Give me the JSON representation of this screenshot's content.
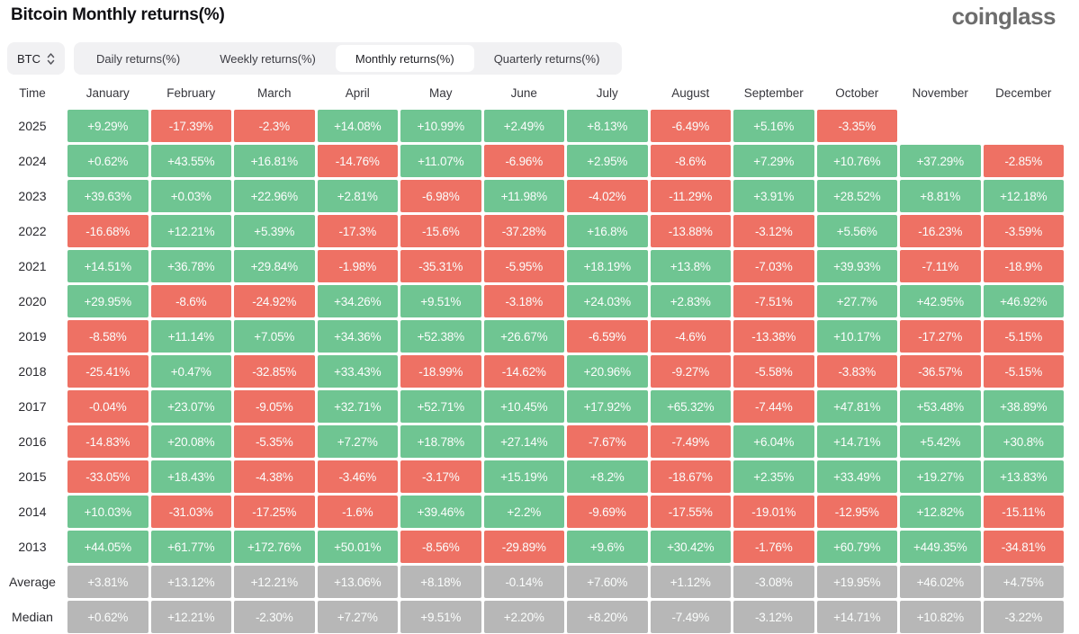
{
  "page": {
    "title": "Bitcoin Monthly returns(%)",
    "logo_text": "coinglass"
  },
  "controls": {
    "coin_selector": {
      "value": "BTC"
    },
    "tabs": [
      {
        "label": "Daily returns(%)",
        "active": false
      },
      {
        "label": "Weekly returns(%)",
        "active": false
      },
      {
        "label": "Monthly returns(%)",
        "active": true
      },
      {
        "label": "Quarterly returns(%)",
        "active": false
      }
    ]
  },
  "colors": {
    "positive": "#6fc592",
    "negative": "#ee7164",
    "summary": "#b7b7b7",
    "chip_background": "#f1f1f3"
  },
  "table": {
    "time_header": "Time",
    "months": [
      "January",
      "February",
      "March",
      "April",
      "May",
      "June",
      "July",
      "August",
      "September",
      "October",
      "November",
      "December"
    ],
    "rows": [
      {
        "label": "2025",
        "type": "year",
        "values": [
          "+9.29%",
          "-17.39%",
          "-2.3%",
          "+14.08%",
          "+10.99%",
          "+2.49%",
          "+8.13%",
          "-6.49%",
          "+5.16%",
          "-3.35%",
          "",
          ""
        ]
      },
      {
        "label": "2024",
        "type": "year",
        "values": [
          "+0.62%",
          "+43.55%",
          "+16.81%",
          "-14.76%",
          "+11.07%",
          "-6.96%",
          "+2.95%",
          "-8.6%",
          "+7.29%",
          "+10.76%",
          "+37.29%",
          "-2.85%"
        ]
      },
      {
        "label": "2023",
        "type": "year",
        "values": [
          "+39.63%",
          "+0.03%",
          "+22.96%",
          "+2.81%",
          "-6.98%",
          "+11.98%",
          "-4.02%",
          "-11.29%",
          "+3.91%",
          "+28.52%",
          "+8.81%",
          "+12.18%"
        ]
      },
      {
        "label": "2022",
        "type": "year",
        "values": [
          "-16.68%",
          "+12.21%",
          "+5.39%",
          "-17.3%",
          "-15.6%",
          "-37.28%",
          "+16.8%",
          "-13.88%",
          "-3.12%",
          "+5.56%",
          "-16.23%",
          "-3.59%"
        ]
      },
      {
        "label": "2021",
        "type": "year",
        "values": [
          "+14.51%",
          "+36.78%",
          "+29.84%",
          "-1.98%",
          "-35.31%",
          "-5.95%",
          "+18.19%",
          "+13.8%",
          "-7.03%",
          "+39.93%",
          "-7.11%",
          "-18.9%"
        ]
      },
      {
        "label": "2020",
        "type": "year",
        "values": [
          "+29.95%",
          "-8.6%",
          "-24.92%",
          "+34.26%",
          "+9.51%",
          "-3.18%",
          "+24.03%",
          "+2.83%",
          "-7.51%",
          "+27.7%",
          "+42.95%",
          "+46.92%"
        ]
      },
      {
        "label": "2019",
        "type": "year",
        "values": [
          "-8.58%",
          "+11.14%",
          "+7.05%",
          "+34.36%",
          "+52.38%",
          "+26.67%",
          "-6.59%",
          "-4.6%",
          "-13.38%",
          "+10.17%",
          "-17.27%",
          "-5.15%"
        ]
      },
      {
        "label": "2018",
        "type": "year",
        "values": [
          "-25.41%",
          "+0.47%",
          "-32.85%",
          "+33.43%",
          "-18.99%",
          "-14.62%",
          "+20.96%",
          "-9.27%",
          "-5.58%",
          "-3.83%",
          "-36.57%",
          "-5.15%"
        ]
      },
      {
        "label": "2017",
        "type": "year",
        "values": [
          "-0.04%",
          "+23.07%",
          "-9.05%",
          "+32.71%",
          "+52.71%",
          "+10.45%",
          "+17.92%",
          "+65.32%",
          "-7.44%",
          "+47.81%",
          "+53.48%",
          "+38.89%"
        ]
      },
      {
        "label": "2016",
        "type": "year",
        "values": [
          "-14.83%",
          "+20.08%",
          "-5.35%",
          "+7.27%",
          "+18.78%",
          "+27.14%",
          "-7.67%",
          "-7.49%",
          "+6.04%",
          "+14.71%",
          "+5.42%",
          "+30.8%"
        ]
      },
      {
        "label": "2015",
        "type": "year",
        "values": [
          "-33.05%",
          "+18.43%",
          "-4.38%",
          "-3.46%",
          "-3.17%",
          "+15.19%",
          "+8.2%",
          "-18.67%",
          "+2.35%",
          "+33.49%",
          "+19.27%",
          "+13.83%"
        ]
      },
      {
        "label": "2014",
        "type": "year",
        "values": [
          "+10.03%",
          "-31.03%",
          "-17.25%",
          "-1.6%",
          "+39.46%",
          "+2.2%",
          "-9.69%",
          "-17.55%",
          "-19.01%",
          "-12.95%",
          "+12.82%",
          "-15.11%"
        ]
      },
      {
        "label": "2013",
        "type": "year",
        "values": [
          "+44.05%",
          "+61.77%",
          "+172.76%",
          "+50.01%",
          "-8.56%",
          "-29.89%",
          "+9.6%",
          "+30.42%",
          "-1.76%",
          "+60.79%",
          "+449.35%",
          "-34.81%"
        ]
      },
      {
        "label": "Average",
        "type": "summary",
        "values": [
          "+3.81%",
          "+13.12%",
          "+12.21%",
          "+13.06%",
          "+8.18%",
          "-0.14%",
          "+7.60%",
          "+1.12%",
          "-3.08%",
          "+19.95%",
          "+46.02%",
          "+4.75%"
        ]
      },
      {
        "label": "Median",
        "type": "summary",
        "values": [
          "+0.62%",
          "+12.21%",
          "-2.30%",
          "+7.27%",
          "+9.51%",
          "+2.20%",
          "+8.20%",
          "-7.49%",
          "-3.12%",
          "+14.71%",
          "+10.82%",
          "-3.22%"
        ]
      }
    ]
  }
}
